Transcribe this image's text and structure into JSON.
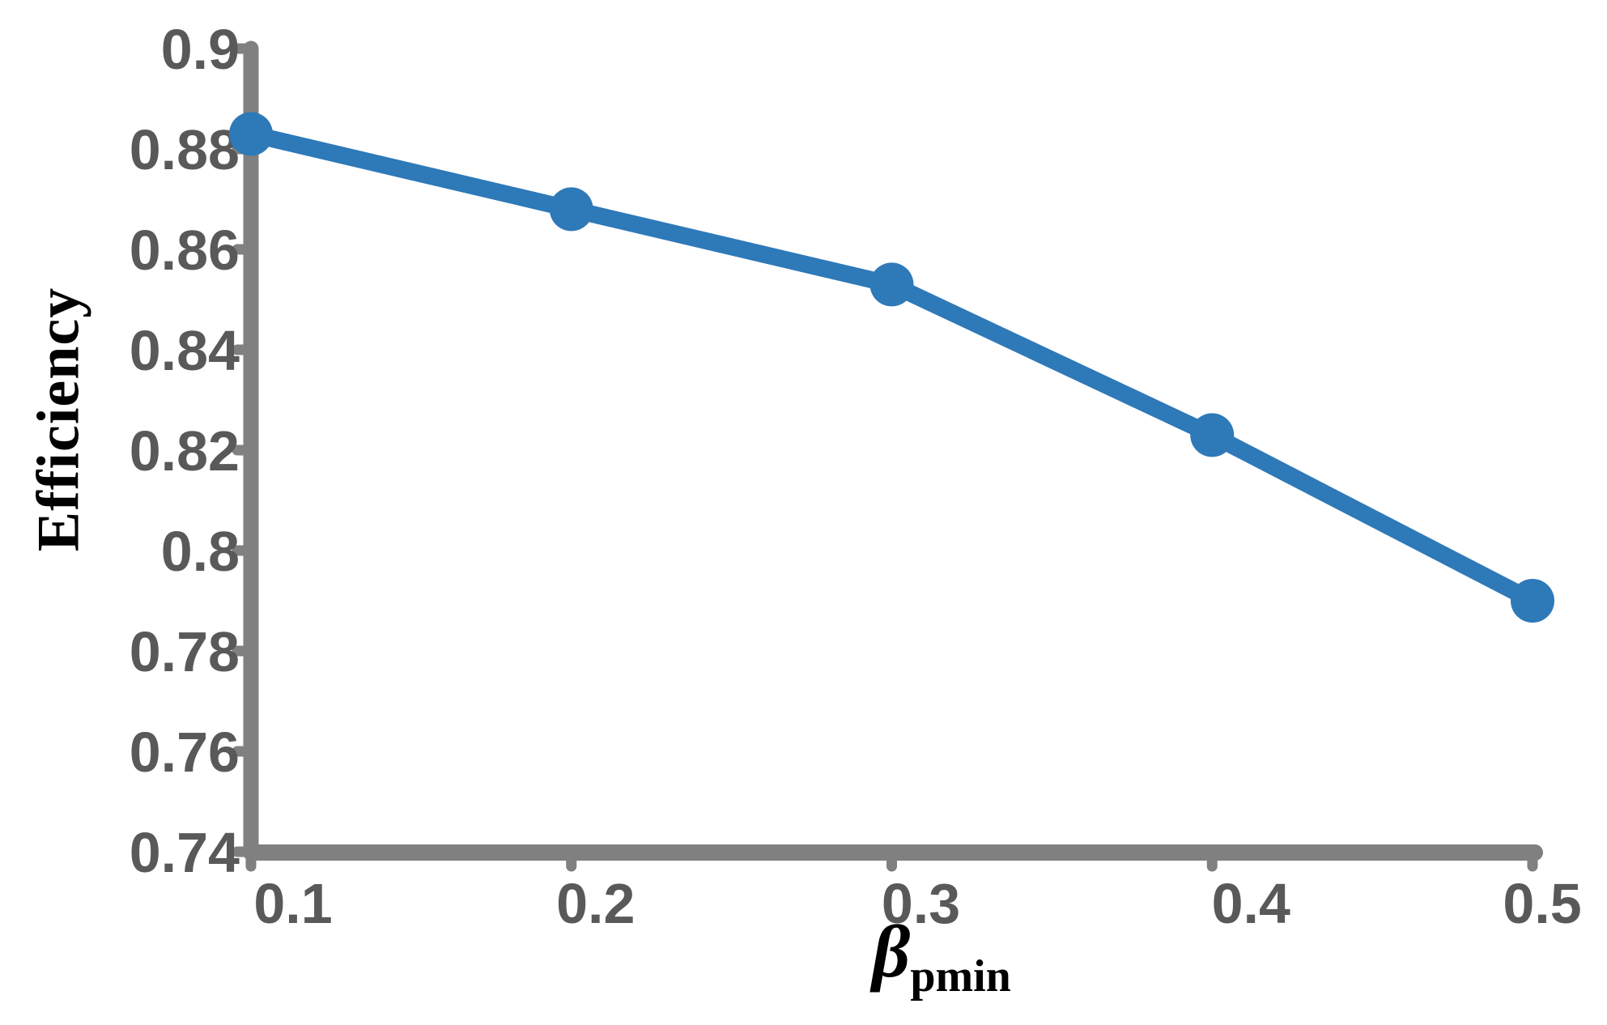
{
  "chart_data": {
    "type": "line",
    "title": "",
    "xlabel": "β_pmin",
    "xlabel_base": "β",
    "xlabel_subscript": "pmin",
    "ylabel": "Efficiency",
    "x": [
      0.1,
      0.2,
      0.3,
      0.4,
      0.5
    ],
    "series": [
      {
        "name": "Efficiency",
        "values": [
          0.883,
          0.868,
          0.853,
          0.823,
          0.79
        ]
      }
    ],
    "xlim": [
      0.1,
      0.5
    ],
    "ylim": [
      0.74,
      0.9
    ],
    "x_tick_labels": [
      "0.1",
      "0.2",
      "0.3",
      "0.4",
      "0.5"
    ],
    "y_ticks": [
      0.74,
      0.76,
      0.78,
      0.8,
      0.82,
      0.84,
      0.86,
      0.88,
      0.9
    ],
    "y_tick_labels": [
      "0.74",
      "0.76",
      "0.78",
      "0.8",
      "0.82",
      "0.84",
      "0.86",
      "0.88",
      "0.9"
    ],
    "grid": false,
    "legend": false,
    "marker": "circle",
    "colors": {
      "line": "#2E79B8",
      "axis": "#808080",
      "tick_labels": "#595959",
      "axis_titles": "#000000"
    }
  }
}
